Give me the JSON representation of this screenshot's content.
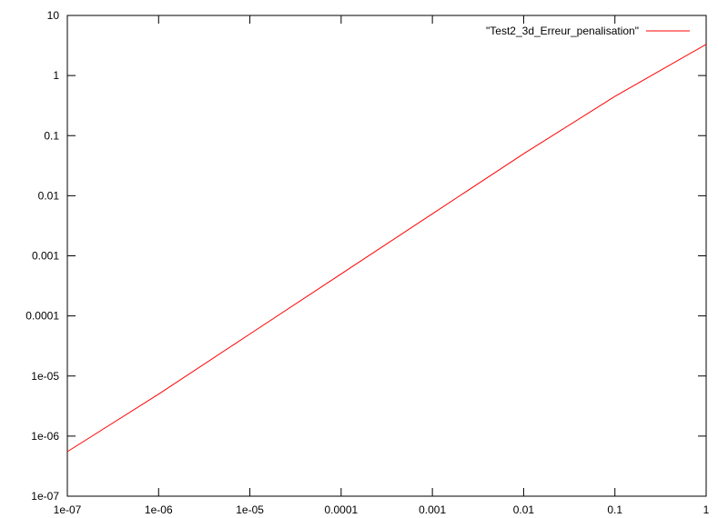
{
  "chart_data": {
    "type": "line",
    "title": "",
    "xlabel": "",
    "ylabel": "",
    "x_scale": "log",
    "y_scale": "log",
    "xlim": [
      1e-07,
      1
    ],
    "ylim": [
      1e-07,
      10
    ],
    "x_ticks": [
      {
        "value": 1e-07,
        "label": "1e-07"
      },
      {
        "value": 1e-06,
        "label": "1e-06"
      },
      {
        "value": 1e-05,
        "label": "1e-05"
      },
      {
        "value": 0.0001,
        "label": "0.0001"
      },
      {
        "value": 0.001,
        "label": "0.001"
      },
      {
        "value": 0.01,
        "label": "0.01"
      },
      {
        "value": 0.1,
        "label": "0.1"
      },
      {
        "value": 1,
        "label": "1"
      }
    ],
    "y_ticks": [
      {
        "value": 1e-07,
        "label": "1e-07"
      },
      {
        "value": 1e-06,
        "label": "1e-06"
      },
      {
        "value": 1e-05,
        "label": "1e-05"
      },
      {
        "value": 0.0001,
        "label": "0.0001"
      },
      {
        "value": 0.001,
        "label": "0.001"
      },
      {
        "value": 0.01,
        "label": "0.01"
      },
      {
        "value": 0.1,
        "label": "0.1"
      },
      {
        "value": 1,
        "label": "1"
      },
      {
        "value": 10,
        "label": "10"
      }
    ],
    "grid": false,
    "legend_position": "top-right",
    "series": [
      {
        "name": "\"Test2_3d_Erreur_penalisation\"",
        "color": "#ff0000",
        "x": [
          1e-07,
          1e-06,
          1e-05,
          0.0001,
          0.001,
          0.01,
          0.1,
          1
        ],
        "y": [
          5.5e-07,
          5e-06,
          5e-05,
          0.0005,
          0.005,
          0.05,
          0.45,
          3.3
        ]
      }
    ]
  }
}
